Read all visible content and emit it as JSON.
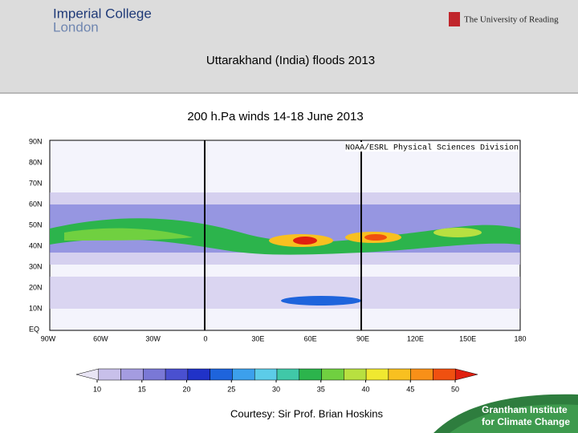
{
  "header": {
    "left_logo": [
      "Imperial College",
      "London"
    ],
    "right_logo": "The University of Reading",
    "title": "Uttarakhand (India) floods 2013"
  },
  "map": {
    "title": "200 h.Pa winds 14-18 June 2013",
    "credit": "NOAA/ESRL Physical Sciences Division",
    "lat_labels": [
      "90N",
      "80N",
      "70N",
      "60N",
      "50N",
      "40N",
      "30N",
      "20N",
      "10N",
      "EQ"
    ],
    "lon_labels": [
      "90W",
      "60W",
      "30W",
      "0",
      "30E",
      "60E",
      "90E",
      "120E",
      "150E",
      "180"
    ]
  },
  "colorbar": {
    "ticks": [
      10,
      15,
      20,
      25,
      30,
      35,
      40,
      45,
      50
    ],
    "colors": [
      "#e8e4f4",
      "#c8c0ea",
      "#a49ce0",
      "#7a78d6",
      "#4a50d0",
      "#2032c8",
      "#1e64dc",
      "#3ca0ec",
      "#5ccce8",
      "#40c8a8",
      "#2cb44c",
      "#70d040",
      "#b8e040",
      "#f0e830",
      "#f8c020",
      "#f89018",
      "#f05010",
      "#e02010"
    ]
  },
  "footer": {
    "courtesy": "Courtesy:  Sir Prof. Brian Hoskins",
    "logo": [
      "Grantham Institute",
      "for Climate Change"
    ]
  }
}
